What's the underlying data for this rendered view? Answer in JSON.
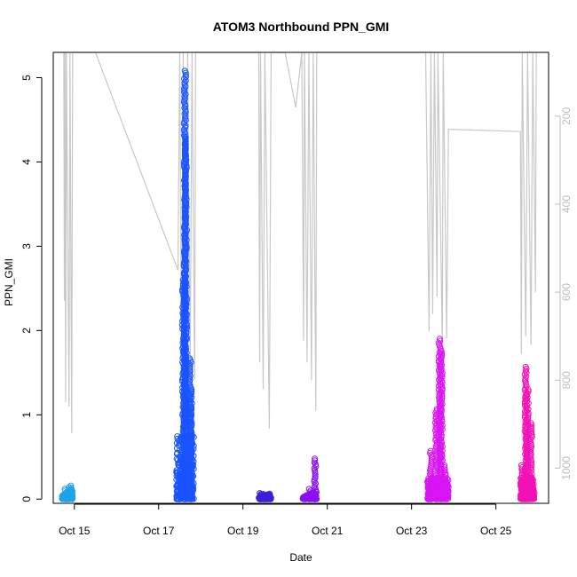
{
  "chart_data": {
    "type": "scatter",
    "title": "ATOM3 Northbound PPN_GMI",
    "xlabel": "Date",
    "ylabel": "PPN_GMI",
    "x_tick_labels": [
      "Oct 15",
      "Oct 17",
      "Oct 19",
      "Oct 21",
      "Oct 23",
      "Oct 25"
    ],
    "x_tick_values": [
      "2023-10-15",
      "2023-10-17",
      "2023-10-19",
      "2023-10-21",
      "2023-10-23",
      "2023-10-25"
    ],
    "xlim": [
      "2023-10-14 12:00",
      "2023-10-26 06:00"
    ],
    "ylim": [
      -0.05,
      5.3
    ],
    "y_ticks": [
      0,
      1,
      2,
      3,
      4,
      5
    ],
    "y_tick_labels": [
      "0",
      "1",
      "2",
      "3",
      "4",
      "5"
    ],
    "right_axis": {
      "label": "",
      "reversed": true,
      "ticks": [
        200,
        400,
        600,
        800,
        1000
      ],
      "tick_labels": [
        "200",
        "400",
        "600",
        "800",
        "1000"
      ],
      "lim": [
        55,
        1080
      ],
      "color": "#bdbdbd"
    },
    "grid": false,
    "legend": "none",
    "series": [
      {
        "color": "#1ea3e6",
        "t0": "2023-10-14 17:00",
        "t1": "2023-10-14 23:00",
        "ymax": 0.15,
        "shape": "ramp",
        "spikes": [
          [
            "2023-10-14 19:00",
            0.12
          ],
          [
            "2023-10-14 21:00",
            0.14
          ],
          [
            "2023-10-14 22:30",
            0.16
          ]
        ]
      },
      {
        "color": "#1a53ff",
        "t0": "2023-10-17 10:00",
        "t1": "2023-10-17 20:00",
        "ymax": 0.75,
        "shape": "block",
        "spikes": [
          [
            "2023-10-17 14:00",
            2.6
          ],
          [
            "2023-10-17 15:00",
            5.08
          ],
          [
            "2023-10-17 15:30",
            4.3
          ],
          [
            "2023-10-17 18:00",
            1.67
          ],
          [
            "2023-10-17 18:30",
            1.3
          ]
        ]
      },
      {
        "color": "#3a1fd9",
        "t0": "2023-10-19 09:00",
        "t1": "2023-10-19 16:00",
        "ymax": 0.07,
        "shape": "ramp",
        "spikes": [
          [
            "2023-10-19 10:00",
            0.07
          ],
          [
            "2023-10-19 12:00",
            0.06
          ]
        ]
      },
      {
        "color": "#8a11f0",
        "t0": "2023-10-20 10:00",
        "t1": "2023-10-20 18:00",
        "ymax": 0.1,
        "shape": "ramp",
        "spikes": [
          [
            "2023-10-20 14:00",
            0.12
          ],
          [
            "2023-10-20 17:00",
            0.48
          ]
        ]
      },
      {
        "color": "#d815f2",
        "t0": "2023-10-23 09:00",
        "t1": "2023-10-23 21:00",
        "ymax": 0.25,
        "shape": "block",
        "spikes": [
          [
            "2023-10-23 11:00",
            0.57
          ],
          [
            "2023-10-23 14:00",
            1.07
          ],
          [
            "2023-10-23 16:00",
            1.9
          ],
          [
            "2023-10-23 17:00",
            1.75
          ],
          [
            "2023-10-23 19:00",
            0.4
          ]
        ]
      },
      {
        "color": "#f311b4",
        "t0": "2023-10-25 14:00",
        "t1": "2023-10-25 22:00",
        "ymax": 0.25,
        "shape": "block",
        "spikes": [
          [
            "2023-10-25 15:00",
            0.4
          ],
          [
            "2023-10-25 17:00",
            1.57
          ],
          [
            "2023-10-25 18:00",
            1.3
          ],
          [
            "2023-10-25 20:00",
            0.9
          ]
        ]
      }
    ],
    "right_axis_trace": {
      "color": "#c8c8c8",
      "points": [
        [
          "2023-10-14 18:00",
          55
        ],
        [
          "2023-10-14 18:20",
          620
        ],
        [
          "2023-10-14 18:40",
          55
        ],
        [
          "2023-10-14 19:00",
          850
        ],
        [
          "2023-10-14 19:30",
          55
        ],
        [
          "2023-10-14 21:00",
          860
        ],
        [
          "2023-10-14 21:30",
          55
        ],
        [
          "2023-10-14 22:30",
          920
        ],
        [
          "2023-10-14 23:00",
          55
        ],
        [
          "2023-10-15 12:00",
          55
        ],
        [
          "2023-10-17 11:00",
          550
        ],
        [
          "2023-10-17 12:00",
          55
        ],
        [
          "2023-10-17 13:00",
          720
        ],
        [
          "2023-10-17 14:00",
          55
        ],
        [
          "2023-10-17 15:30",
          900
        ],
        [
          "2023-10-17 16:30",
          55
        ],
        [
          "2023-10-17 18:00",
          760
        ],
        [
          "2023-10-17 19:00",
          55
        ],
        [
          "2023-10-17 20:30",
          800
        ],
        [
          "2023-10-17 21:00",
          55
        ],
        [
          "2023-10-19 09:00",
          55
        ],
        [
          "2023-10-19 09:30",
          760
        ],
        [
          "2023-10-19 10:00",
          55
        ],
        [
          "2023-10-19 11:30",
          820
        ],
        [
          "2023-10-19 12:30",
          55
        ],
        [
          "2023-10-19 15:00",
          910
        ],
        [
          "2023-10-19 16:00",
          55
        ],
        [
          "2023-10-20 00:00",
          55
        ],
        [
          "2023-10-20 06:00",
          180
        ],
        [
          "2023-10-20 09:30",
          55
        ],
        [
          "2023-10-20 10:30",
          710
        ],
        [
          "2023-10-20 11:00",
          55
        ],
        [
          "2023-10-20 12:30",
          760
        ],
        [
          "2023-10-20 13:30",
          55
        ],
        [
          "2023-10-20 15:00",
          800
        ],
        [
          "2023-10-20 16:00",
          55
        ],
        [
          "2023-10-20 17:30",
          870
        ],
        [
          "2023-10-20 18:00",
          55
        ],
        [
          "2023-10-23 08:00",
          55
        ],
        [
          "2023-10-23 10:00",
          690
        ],
        [
          "2023-10-23 11:00",
          55
        ],
        [
          "2023-10-23 12:00",
          650
        ],
        [
          "2023-10-23 13:00",
          55
        ],
        [
          "2023-10-23 14:30",
          610
        ],
        [
          "2023-10-23 15:00",
          55
        ],
        [
          "2023-10-23 17:30",
          720
        ],
        [
          "2023-10-23 18:00",
          55
        ],
        [
          "2023-10-23 20:00",
          705
        ],
        [
          "2023-10-23 21:00",
          230
        ],
        [
          "2023-10-25 14:00",
          235
        ],
        [
          "2023-10-25 14:30",
          740
        ],
        [
          "2023-10-25 15:00",
          55
        ],
        [
          "2023-10-25 17:00",
          700
        ],
        [
          "2023-10-25 18:00",
          55
        ],
        [
          "2023-10-25 20:00",
          720
        ],
        [
          "2023-10-25 21:00",
          55
        ],
        [
          "2023-10-25 22:30",
          600
        ],
        [
          "2023-10-25 23:00",
          55
        ]
      ]
    }
  }
}
